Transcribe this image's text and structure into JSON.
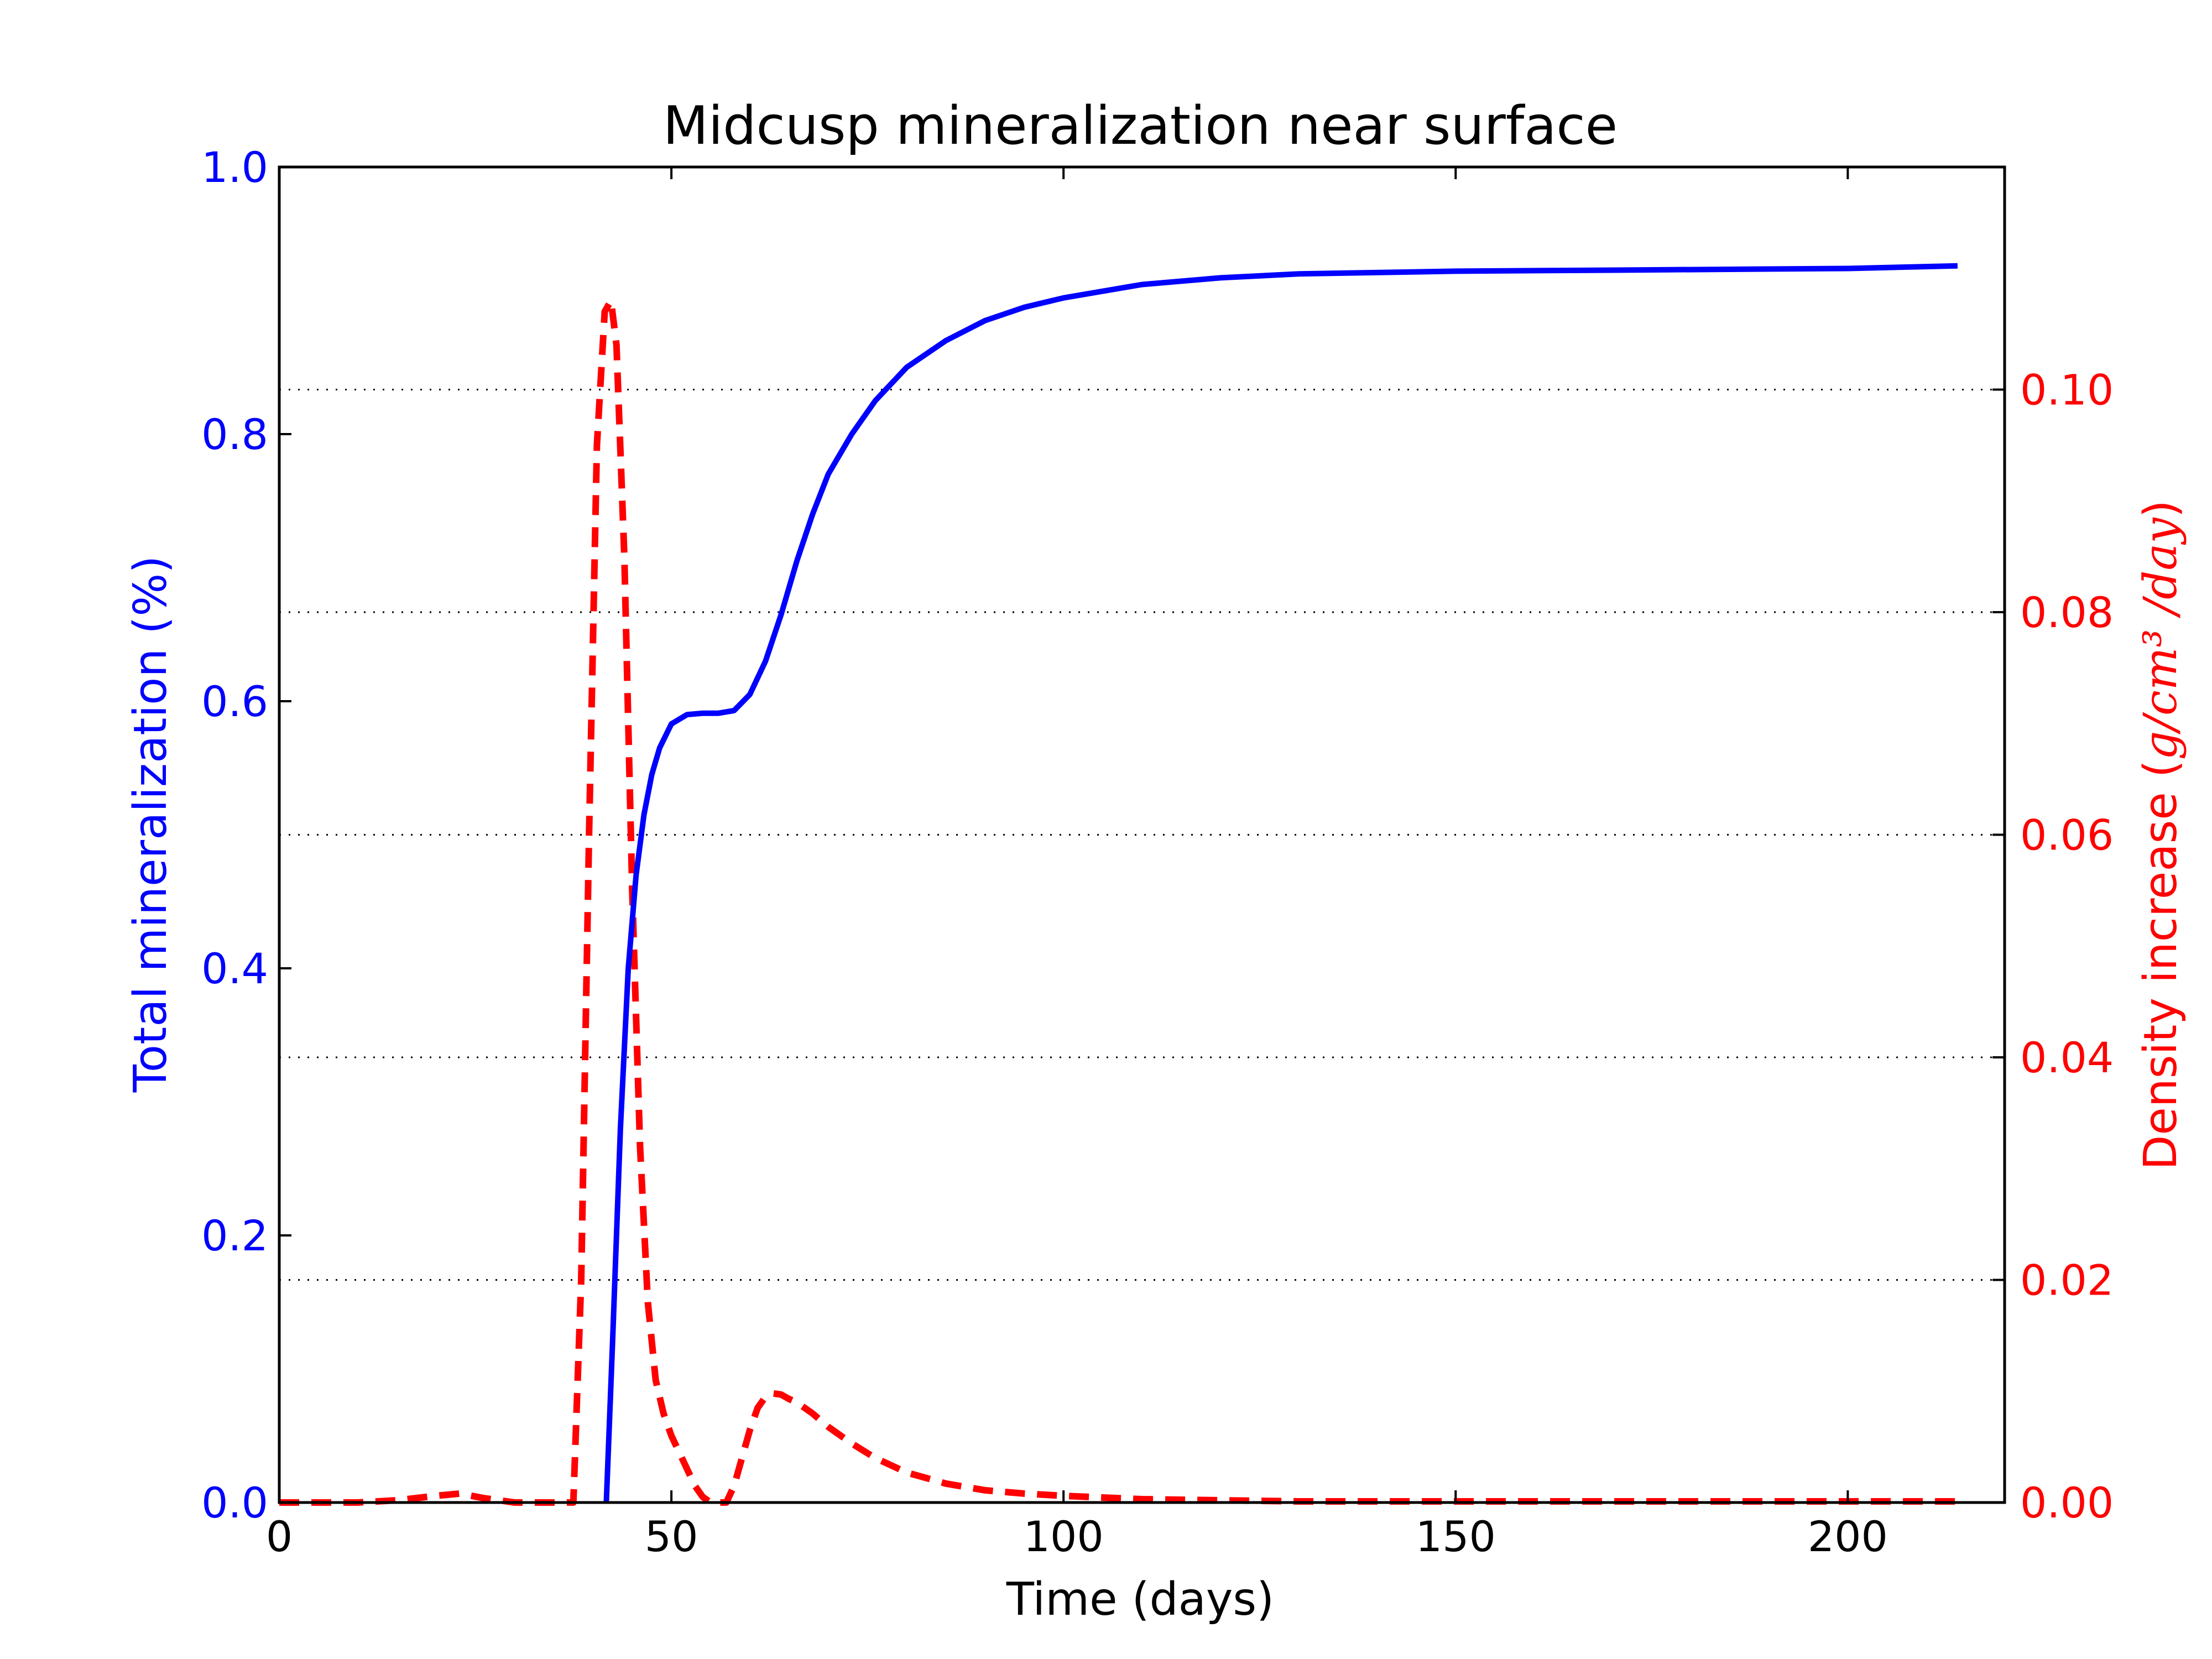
{
  "colors": {
    "mineralization": "#0000ff",
    "density": "#ff0000",
    "axis": "#000000",
    "grid": "#000000"
  },
  "chart_data": {
    "type": "line",
    "title": "Midcusp mineralization near surface",
    "xlabel": "Time (days)",
    "ylabel_left": "Total mineralization (%)",
    "ylabel_right_prefix": "Density increase (",
    "ylabel_right_unit": "g/cm³ /day",
    "ylabel_right_suffix": ")",
    "xlim": [
      0,
      220
    ],
    "ylim_left": [
      0,
      1.0
    ],
    "ylim_right": [
      0,
      0.12
    ],
    "x_ticks": [
      {
        "value": 0,
        "label": "0"
      },
      {
        "value": 50,
        "label": "50"
      },
      {
        "value": 100,
        "label": "100"
      },
      {
        "value": 150,
        "label": "150"
      },
      {
        "value": 200,
        "label": "200"
      }
    ],
    "y_left_ticks": [
      {
        "value": 0.0,
        "label": "0.0"
      },
      {
        "value": 0.2,
        "label": "0.2"
      },
      {
        "value": 0.4,
        "label": "0.4"
      },
      {
        "value": 0.6,
        "label": "0.6"
      },
      {
        "value": 0.8,
        "label": "0.8"
      },
      {
        "value": 1.0,
        "label": "1.0"
      }
    ],
    "y_right_ticks": [
      {
        "value": 0.0,
        "label": "0.00"
      },
      {
        "value": 0.02,
        "label": "0.02"
      },
      {
        "value": 0.04,
        "label": "0.04"
      },
      {
        "value": 0.06,
        "label": "0.06"
      },
      {
        "value": 0.08,
        "label": "0.08"
      },
      {
        "value": 0.1,
        "label": "0.10"
      }
    ],
    "grid": "horizontal dotted at right-axis ticks",
    "series": [
      {
        "name": "Total mineralization",
        "axis": "left",
        "style": "solid",
        "color": "#0000ff",
        "x": [
          41.7,
          42.5,
          43.5,
          44.5,
          45.5,
          46.5,
          47.5,
          48.5,
          50,
          52,
          54,
          56,
          58,
          60,
          62,
          64,
          66,
          68,
          70,
          73,
          76,
          80,
          85,
          90,
          95,
          100,
          110,
          120,
          130,
          150,
          175,
          200,
          214
        ],
        "values": [
          0.0,
          0.12,
          0.28,
          0.4,
          0.47,
          0.515,
          0.545,
          0.565,
          0.583,
          0.59,
          0.591,
          0.591,
          0.593,
          0.605,
          0.63,
          0.665,
          0.705,
          0.74,
          0.77,
          0.8,
          0.825,
          0.85,
          0.87,
          0.885,
          0.895,
          0.902,
          0.912,
          0.917,
          0.92,
          0.922,
          0.923,
          0.924,
          0.926
        ]
      },
      {
        "name": "Density increase",
        "axis": "right",
        "style": "dashed",
        "color": "#ff0000",
        "x": [
          0,
          10,
          15,
          20,
          23,
          26,
          30,
          35,
          37.5,
          38.5,
          39.5,
          40.5,
          41.5,
          42.3,
          43,
          44,
          45,
          46,
          47,
          48,
          49,
          50,
          51,
          52,
          53,
          54,
          55,
          56,
          57,
          58,
          59,
          60,
          61,
          62,
          63,
          64,
          65,
          66,
          68,
          70,
          73,
          76,
          80,
          85,
          90,
          95,
          100,
          110,
          120,
          130,
          150,
          175,
          200,
          214
        ],
        "values": [
          0.0,
          0.0,
          0.0002,
          0.0006,
          0.0008,
          0.0004,
          0.0,
          0.0,
          0.0,
          0.02,
          0.06,
          0.095,
          0.107,
          0.108,
          0.104,
          0.085,
          0.055,
          0.032,
          0.018,
          0.011,
          0.008,
          0.006,
          0.0045,
          0.003,
          0.0015,
          0.0005,
          0.0,
          0.0,
          0.0,
          0.0015,
          0.004,
          0.0065,
          0.0085,
          0.0095,
          0.0098,
          0.0097,
          0.0093,
          0.009,
          0.008,
          0.0068,
          0.0053,
          0.004,
          0.0027,
          0.0017,
          0.0011,
          0.0008,
          0.0006,
          0.0003,
          0.0002,
          0.0001,
          0.0001,
          0.0001,
          0.0001,
          0.0001
        ]
      }
    ]
  }
}
